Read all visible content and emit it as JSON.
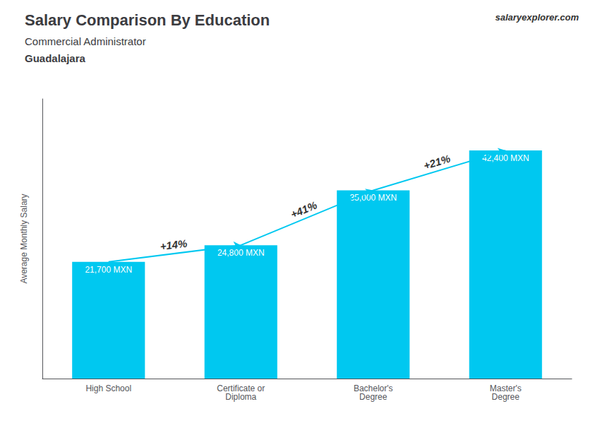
{
  "chart_data": {
    "type": "bar",
    "title": "Salary Comparison By Education",
    "subtitle": [
      "Commercial Administrator",
      "Guadalajara"
    ],
    "ylabel": "Average Monthly Salary",
    "categories": [
      "High School",
      "Certificate or\nDiploma",
      "Bachelor's\nDegree",
      "Master's\nDegree"
    ],
    "values": [
      21700,
      24800,
      35000,
      42400
    ],
    "value_labels": [
      "21,700 MXN",
      "24,800 MXN",
      "35,000 MXN",
      "42,400 MXN"
    ],
    "data_labels": true,
    "color": "#00C8F0",
    "ylim": [
      0,
      52000
    ],
    "grid": false,
    "tick_labels": "x",
    "annotations": [
      {
        "text": "+14%",
        "from": "High School",
        "to": "Certificate or\nDiploma"
      },
      {
        "text": "+41%",
        "from": "Certificate or\nDiploma",
        "to": "Bachelor's\nDegree"
      },
      {
        "text": "+21%",
        "from": "Bachelor's\nDegree",
        "to": "Master's\nDegree"
      },
      {
        "text": "salaryexplorer.com"
      }
    ]
  }
}
